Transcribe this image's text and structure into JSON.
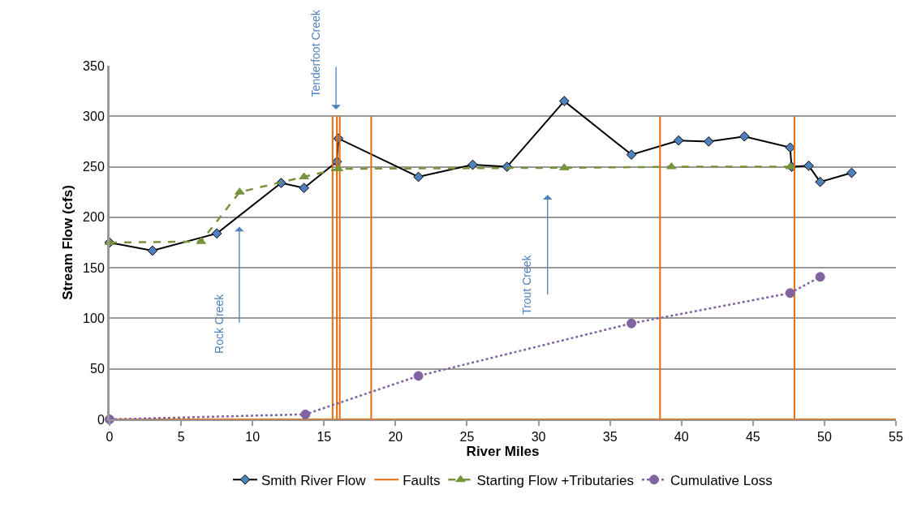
{
  "chart_data": {
    "type": "line",
    "xlabel": "River Miles",
    "ylabel": "Stream Flow (cfs)",
    "xlim": [
      0,
      55
    ],
    "xticks": [
      0,
      5,
      10,
      15,
      20,
      25,
      30,
      35,
      40,
      45,
      50,
      55
    ],
    "ylim": [
      0,
      350
    ],
    "yticks": [
      0,
      50,
      100,
      150,
      200,
      250,
      300,
      350
    ],
    "grid": "y",
    "legend": "bottom",
    "series": [
      {
        "name": "Smith River Flow",
        "color": "#000000",
        "marker": "diamond",
        "line_style": "solid",
        "x": [
          0,
          3,
          7.5,
          12,
          13.6,
          15.9,
          16,
          21.6,
          25.4,
          27.8,
          31.8,
          36.5,
          39.8,
          41.9,
          44.4,
          47.6,
          47.7,
          48.9,
          49.7,
          51.9
        ],
        "values": [
          175,
          167,
          184,
          234,
          229,
          255,
          278,
          240,
          252,
          250,
          315,
          262,
          276,
          275,
          280,
          269,
          250,
          251,
          235,
          244
        ]
      },
      {
        "name": "Faults",
        "color": "#e46c0a",
        "marker": "none",
        "line_style": "solid",
        "x": [
          0,
          15.6,
          15.6,
          15.6,
          15.9,
          15.9,
          15.9,
          16.1,
          16.1,
          16.1,
          18.3,
          18.3,
          18.3,
          38.5,
          38.5,
          38.5,
          47.9,
          47.9,
          47.9,
          55
        ],
        "values": [
          0,
          0,
          300,
          0,
          0,
          300,
          0,
          0,
          300,
          0,
          0,
          300,
          0,
          0,
          300,
          0,
          0,
          300,
          0,
          0
        ]
      },
      {
        "name": "Starting Flow +Tributaries",
        "color": "#77933c",
        "marker": "triangle",
        "line_style": "dashed",
        "x": [
          0,
          6.4,
          9.1,
          13.6,
          16,
          31.8,
          39.3,
          47.6
        ],
        "values": [
          175,
          176,
          225,
          240,
          248,
          249,
          250,
          250
        ]
      },
      {
        "name": "Cumulative Loss",
        "color": "#8064a2",
        "marker": "circle",
        "line_style": "dotted",
        "x": [
          0,
          13.7,
          21.6,
          36.5,
          47.6,
          49.7
        ],
        "values": [
          0,
          5,
          43,
          95,
          125,
          141
        ]
      }
    ],
    "annotations": [
      "Rock Creek",
      "Tenderfoot Creek",
      "Trout Creek"
    ]
  }
}
